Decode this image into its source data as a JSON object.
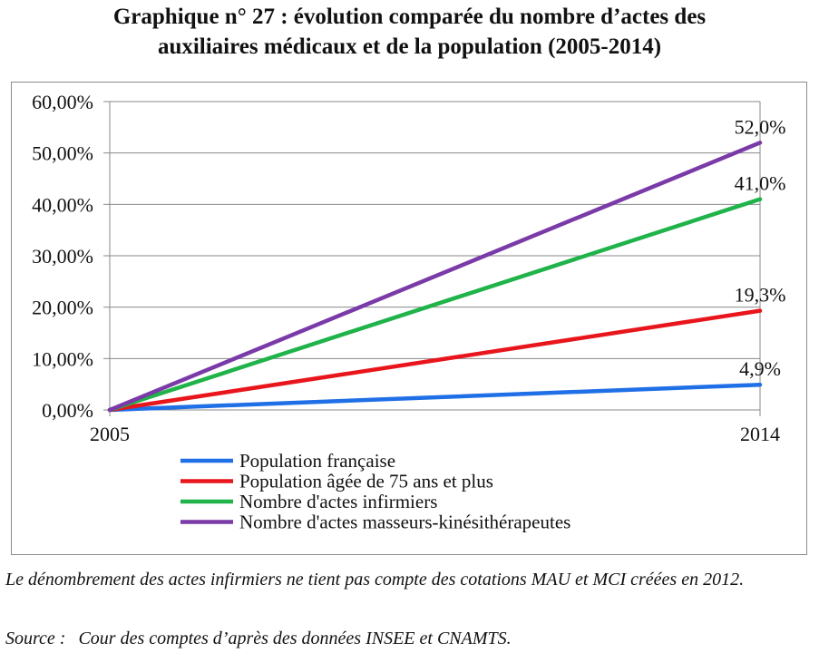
{
  "title_lines": [
    "Graphique n° 27 : évolution comparée du nombre d’actes des",
    "auxiliaires médicaux et de la population (2005-2014)"
  ],
  "chart_data": {
    "type": "line",
    "x": [
      2005,
      2014
    ],
    "x_tick_labels": [
      "2005",
      "2014"
    ],
    "ylim": [
      0,
      60
    ],
    "y_tick_labels": [
      "0,00%",
      "10,00%",
      "20,00%",
      "30,00%",
      "40,00%",
      "50,00%",
      "60,00%"
    ],
    "grid": true,
    "series": [
      {
        "name": "Population française",
        "values": [
          0,
          4.9
        ],
        "end_label": "4,9%",
        "color": "#1f6fe6"
      },
      {
        "name": "Population âgée de 75 ans et plus",
        "values": [
          0,
          19.3
        ],
        "end_label": "19,3%",
        "color": "#e8161c"
      },
      {
        "name": "Nombre d'actes infirmiers",
        "values": [
          0,
          41.0
        ],
        "end_label": "41,0%",
        "color": "#1fb34a"
      },
      {
        "name": "Nombre d'actes masseurs-kinésithérapeutes",
        "values": [
          0,
          52.0
        ],
        "end_label": "52,0%",
        "color": "#7a3aa8"
      }
    ],
    "legend_position": "bottom"
  },
  "footnote": "Le dénombrement des actes infirmiers ne tient pas compte des cotations MAU et MCI créées en 2012.",
  "source_label": "Source :",
  "source_text": "Cour des comptes d’après des données INSEE et CNAMTS."
}
